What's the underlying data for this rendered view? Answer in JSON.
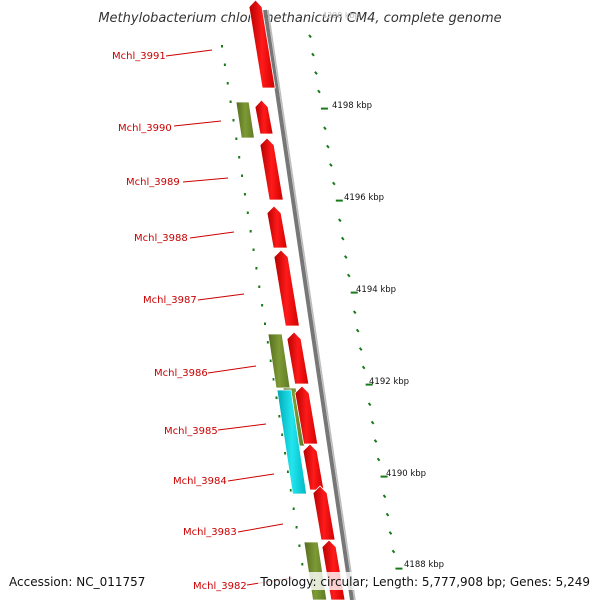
{
  "title": "Methylobacterium chloromethanicum CM4, complete genome",
  "accession": "Accession: NC_011757",
  "summary": "Topology: circular; Length: 5,777,908 bp; Genes: 5,249",
  "top_faded_label": "4200 kbp",
  "gene_labels": [
    "Mchl_3991",
    "Mchl_3990",
    "Mchl_3989",
    "Mchl_3988",
    "Mchl_3987",
    "Mchl_3986",
    "Mchl_3985",
    "Mchl_3984",
    "Mchl_3983",
    "Mchl_3982"
  ],
  "ruler_labels": [
    "4198 kbp",
    "4196 kbp",
    "4194 kbp",
    "4192 kbp",
    "4190 kbp",
    "4188 kbp"
  ],
  "colors": {
    "gene_forward": "#ff0000",
    "gene_rna": "#6b8e23",
    "gene_cyan": "#00cccc",
    "backbone": "#777777",
    "tick": "#1a7a1a",
    "label": "#cc0000"
  }
}
